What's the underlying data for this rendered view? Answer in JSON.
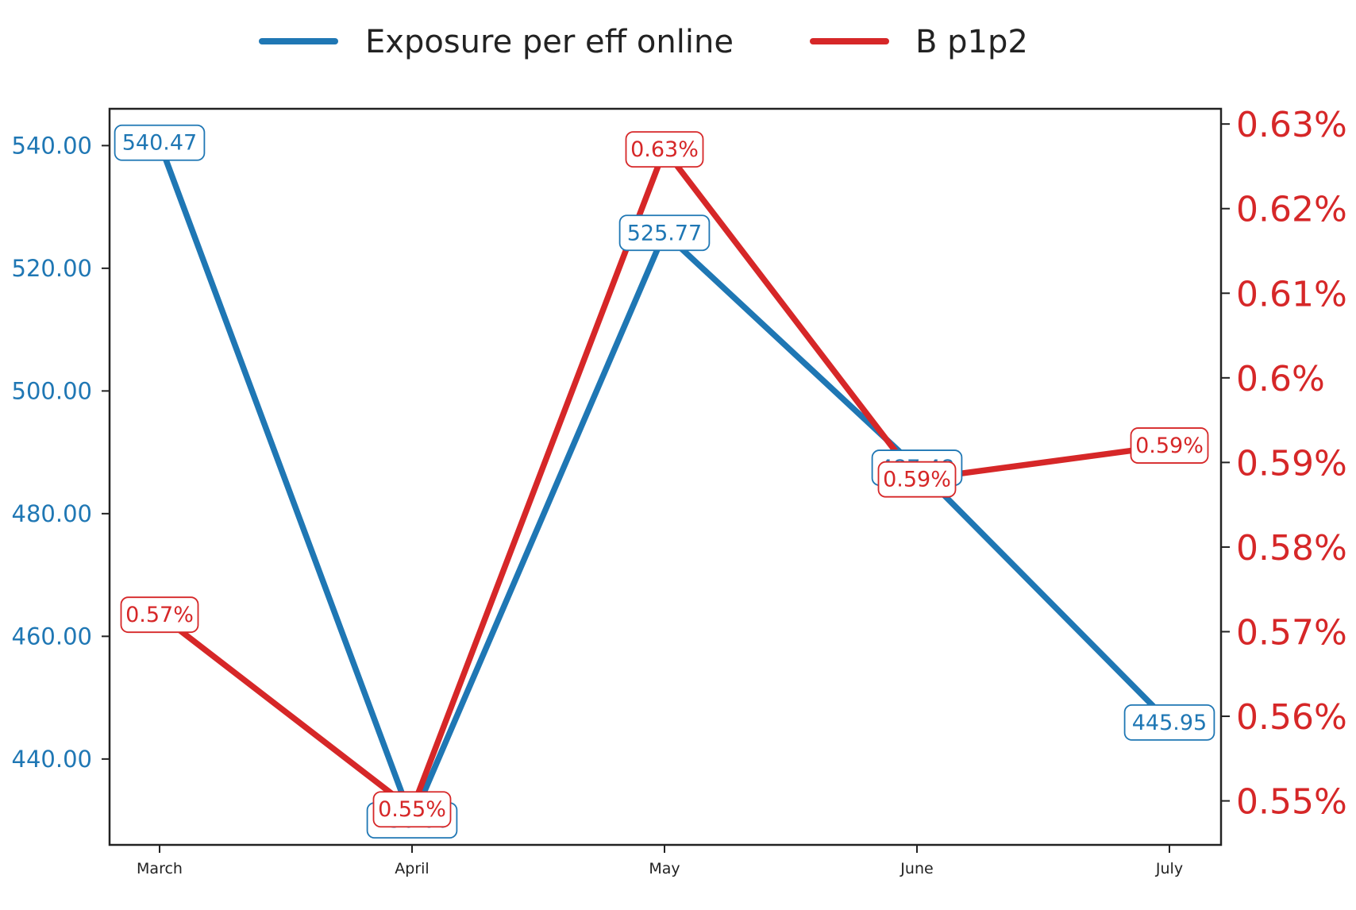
{
  "chart_data": {
    "type": "line",
    "categories": [
      "March",
      "April",
      "May",
      "June",
      "July"
    ],
    "series": [
      {
        "name": "Exposure per eff online",
        "axis": "left",
        "color": "#1f77b4",
        "values": [
          540.47,
          430.0,
          525.77,
          487.48,
          445.95
        ],
        "labels": [
          "540.47",
          "430.00",
          "525.77",
          "487.48",
          "445.95"
        ]
      },
      {
        "name": "B p1p2",
        "axis": "right",
        "color": "#d62728",
        "values": [
          0.572,
          0.549,
          0.627,
          0.588,
          0.592
        ],
        "labels": [
          "0.57%",
          "0.55%",
          "0.63%",
          "0.59%",
          "0.59%"
        ]
      }
    ],
    "y_left": {
      "ticks": [
        440,
        460,
        480,
        500,
        520,
        540
      ],
      "tick_labels": [
        "440.00",
        "460.00",
        "480.00",
        "500.00",
        "520.00",
        "540.00"
      ],
      "ylim": [
        426,
        546
      ]
    },
    "y_right": {
      "ticks": [
        0.55,
        0.56,
        0.57,
        0.58,
        0.59,
        0.6,
        0.61,
        0.62,
        0.63
      ],
      "tick_labels": [
        "0.55%",
        "0.56%",
        "0.57%",
        "0.58%",
        "0.59%",
        "0.6%",
        "0.61%",
        "0.62%",
        "0.63%"
      ],
      "ylim": [
        0.5448,
        0.6318
      ]
    },
    "legend_position": "top-center",
    "grid": false
  }
}
